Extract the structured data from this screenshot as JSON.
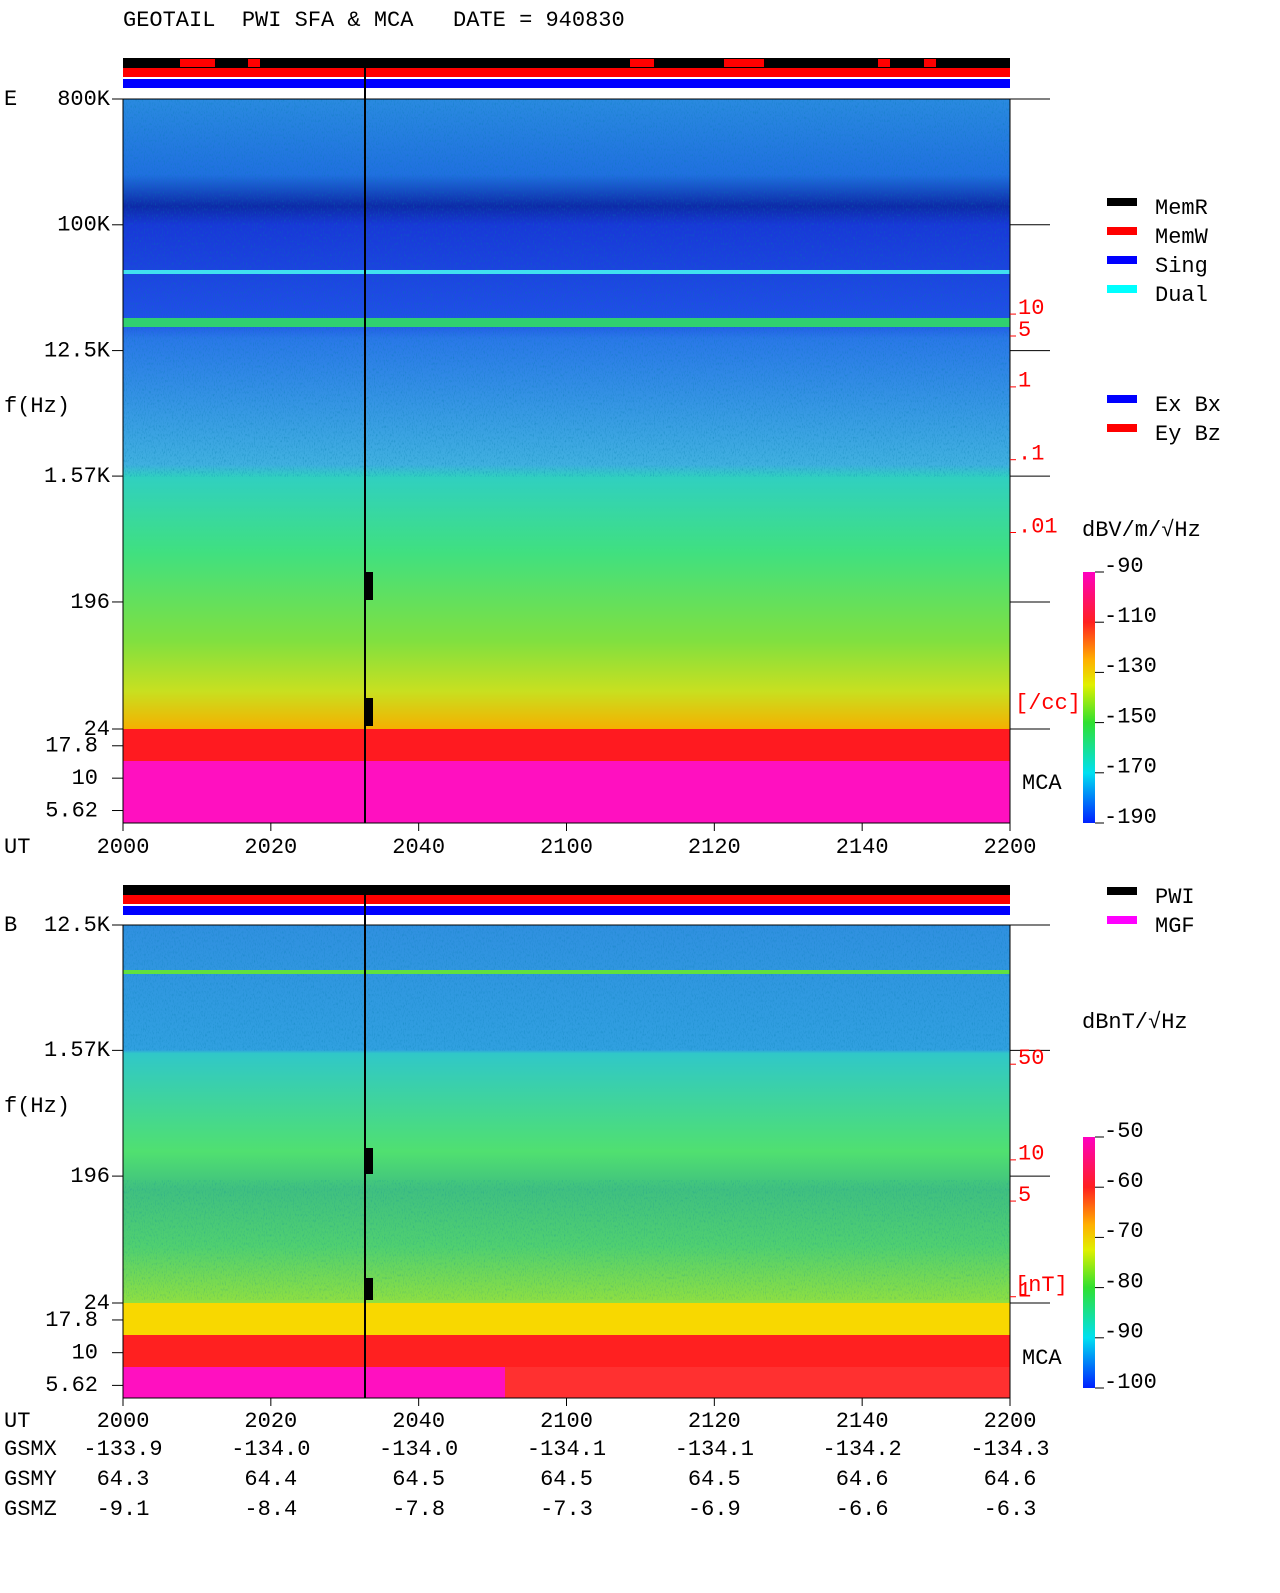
{
  "title": "GEOTAIL  PWI SFA & MCA   DATE = 940830",
  "chart_data": [
    {
      "type": "spectrogram",
      "panel_label": "E",
      "y_label": "f(Hz)",
      "x_label": "UT",
      "mca_label": "MCA",
      "categories": [
        "2000",
        "2020",
        "2040",
        "2100",
        "2120",
        "2140",
        "2200"
      ],
      "log_y": true,
      "ylim": [
        24,
        800000
      ],
      "yticks": [
        {
          "value": 800000,
          "label": "800K"
        },
        {
          "value": 100000,
          "label": "100K"
        },
        {
          "value": 12500,
          "label": "12.5K"
        },
        {
          "value": 1570,
          "label": "1.57K"
        },
        196,
        24
      ],
      "mca_ylim": [
        4.5,
        24
      ],
      "mca_yticks": [
        17.8,
        10,
        5.62
      ],
      "y2_label": "[/cc]",
      "y2lim": [
        2e-05,
        9000
      ],
      "y2ticks": [
        10,
        5,
        1,
        {
          "value": 0.1,
          "label": ".1"
        },
        {
          "value": 0.01,
          "label": ".01"
        }
      ],
      "colorbar_label": "dBV/m/√Hz",
      "colorbar_lim": [
        -190,
        -90
      ],
      "colorbar_ticks": [
        -90,
        -110,
        -130,
        -150,
        -170,
        -190
      ],
      "legend": [
        {
          "name": "MemR",
          "color": "#000000"
        },
        {
          "name": "MemW",
          "color": "#ff0000"
        },
        {
          "name": "Sing",
          "color": "#0000ff"
        },
        {
          "name": "Dual",
          "color": "#00ffff"
        }
      ],
      "legend2": [
        {
          "name": "Ex Bx",
          "color": "#0000ff"
        },
        {
          "name": "Ey Bz",
          "color": "#ff0000"
        }
      ]
    },
    {
      "type": "spectrogram",
      "panel_label": "B",
      "y_label": "f(Hz)",
      "x_label": "UT",
      "mca_label": "MCA",
      "categories": [
        "2000",
        "2020",
        "2040",
        "2100",
        "2120",
        "2140",
        "2200"
      ],
      "log_y": true,
      "ylim": [
        24,
        12500
      ],
      "yticks": [
        {
          "value": 12500,
          "label": "12.5K"
        },
        {
          "value": 1570,
          "label": "1.57K"
        },
        196,
        24
      ],
      "mca_ylim": [
        4.5,
        24
      ],
      "mca_yticks": [
        17.8,
        10,
        5.62
      ],
      "y2_label": "[nT]",
      "y2lim": [
        0.9,
        520
      ],
      "y2ticks": [
        50,
        10,
        5,
        1
      ],
      "colorbar_label": "dBnT/√Hz",
      "colorbar_lim": [
        -100,
        -50
      ],
      "colorbar_ticks": [
        -50,
        -60,
        -70,
        -80,
        -90,
        -100
      ],
      "legend": [
        {
          "name": "PWI",
          "color": "#000000"
        },
        {
          "name": "MGF",
          "color": "#ff00ff"
        }
      ],
      "orbit": [
        {
          "name": "GSMX",
          "values": [
            "-133.9",
            "-134.0",
            "-134.0",
            "-134.1",
            "-134.1",
            "-134.2",
            "-134.3"
          ]
        },
        {
          "name": "GSMY",
          "values": [
            "64.3",
            "64.4",
            "64.5",
            "64.5",
            "64.5",
            "64.6",
            "64.6"
          ]
        },
        {
          "name": "GSMZ",
          "values": [
            "-9.1",
            "-8.4",
            "-7.8",
            "-7.3",
            "-6.9",
            "-6.6",
            "-6.3"
          ]
        }
      ]
    }
  ]
}
